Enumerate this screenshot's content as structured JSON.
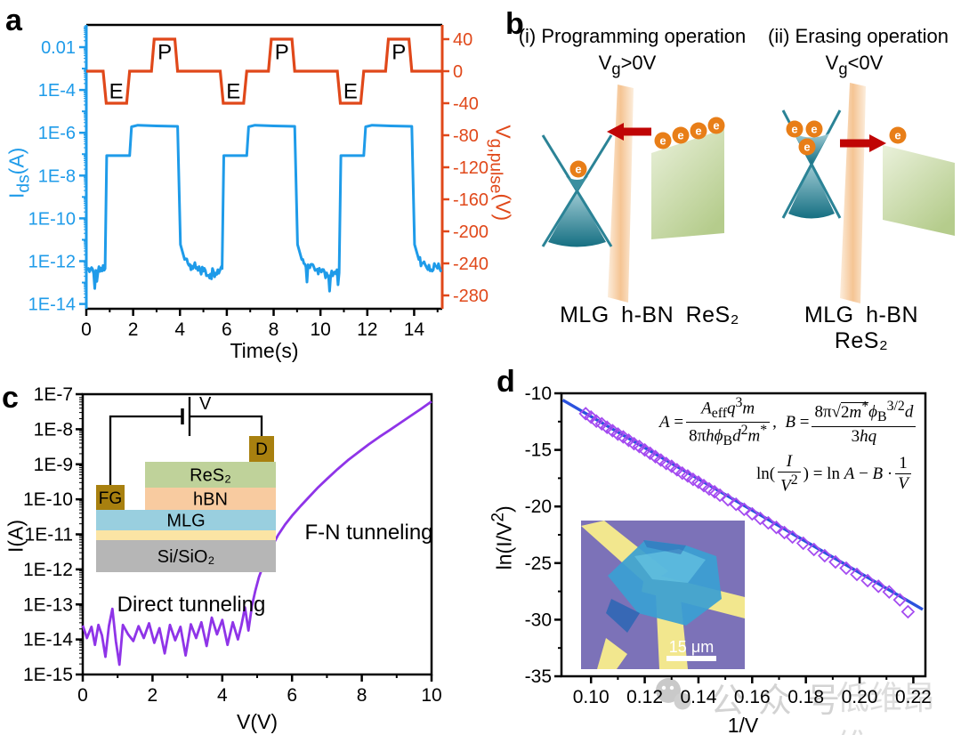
{
  "panel_labels": {
    "a": "a",
    "b": "b",
    "c": "c",
    "d": "d"
  },
  "watermark": {
    "icon": "wechat-icon",
    "text1": "公众号",
    "text2": "低维昂维"
  },
  "chart_data": [
    {
      "id": "panel_a",
      "type": "line",
      "title": "",
      "xlabel": "Time(s)",
      "ylabel_left": "Ids(A)",
      "ylabel_right": "Vg,pulse(V)",
      "x_range": [
        0,
        15.2
      ],
      "x_ticks": [
        0,
        2,
        4,
        6,
        8,
        10,
        12,
        14
      ],
      "x_minor": [
        1,
        3,
        5,
        7,
        9,
        11,
        13,
        15
      ],
      "y_left_scale": "log",
      "y_left_tick_labels": [
        "0.01",
        "1E-4",
        "1E-6",
        "1E-8",
        "1E-10",
        "1E-12",
        "1E-14"
      ],
      "y_left_tick_exps": [
        -2,
        -4,
        -6,
        -8,
        -10,
        -12,
        -14
      ],
      "y_right_ticks": [
        40,
        0,
        -40,
        -80,
        -120,
        -160,
        -200,
        -240,
        -280
      ],
      "series": {
        "vg_pulse": {
          "color": "#E0481A",
          "points": [
            [
              0,
              0
            ],
            [
              0.72,
              0
            ],
            [
              0.85,
              -40
            ],
            [
              1.72,
              -40
            ],
            [
              1.85,
              0
            ],
            [
              2.78,
              0
            ],
            [
              2.9,
              40
            ],
            [
              3.78,
              40
            ],
            [
              3.9,
              0
            ],
            [
              5.72,
              0
            ],
            [
              5.85,
              -40
            ],
            [
              6.72,
              -40
            ],
            [
              6.85,
              0
            ],
            [
              7.78,
              0
            ],
            [
              7.9,
              40
            ],
            [
              8.78,
              40
            ],
            [
              8.9,
              0
            ],
            [
              10.72,
              0
            ],
            [
              10.85,
              -40
            ],
            [
              11.72,
              -40
            ],
            [
              11.85,
              0
            ],
            [
              12.78,
              0
            ],
            [
              12.9,
              40
            ],
            [
              13.78,
              40
            ],
            [
              13.9,
              0
            ],
            [
              15.15,
              0
            ]
          ]
        },
        "ids": {
          "color": "#1E9BE9",
          "noise_amp_decades": 0.3,
          "anchors": [
            [
              0,
              4e-13
            ],
            [
              0.8,
              4.5e-13
            ],
            [
              0.87,
              8.5e-08
            ],
            [
              1.85,
              8.5e-08
            ],
            [
              1.93,
              1.9e-06
            ],
            [
              2.2,
              2.25e-06
            ],
            [
              3.0,
              2.1e-06
            ],
            [
              3.9,
              2e-06
            ],
            [
              4.02,
              6e-12
            ],
            [
              4.2,
              1.2e-12
            ],
            [
              4.5,
              6e-13
            ],
            [
              5.3,
              2.5e-13
            ],
            [
              5.8,
              4.5e-13
            ],
            [
              5.87,
              8.5e-08
            ],
            [
              6.85,
              8.5e-08
            ],
            [
              6.93,
              1.9e-06
            ],
            [
              7.2,
              2.25e-06
            ],
            [
              8.0,
              2.1e-06
            ],
            [
              8.9,
              2e-06
            ],
            [
              9.02,
              6e-12
            ],
            [
              9.2,
              1.2e-12
            ],
            [
              9.5,
              6e-13
            ],
            [
              10.3,
              2e-13
            ],
            [
              10.8,
              4.5e-13
            ],
            [
              10.87,
              8.5e-08
            ],
            [
              11.85,
              8.5e-08
            ],
            [
              11.93,
              1.9e-06
            ],
            [
              12.2,
              2.25e-06
            ],
            [
              13.0,
              2.1e-06
            ],
            [
              13.9,
              2e-06
            ],
            [
              14.02,
              6e-12
            ],
            [
              14.2,
              1.2e-12
            ],
            [
              14.5,
              6e-13
            ],
            [
              15.15,
              4e-13
            ]
          ]
        }
      },
      "pulse_annotations": [
        {
          "text": "P",
          "t": 3.35,
          "v": 24
        },
        {
          "text": "P",
          "t": 8.35,
          "v": 24
        },
        {
          "text": "P",
          "t": 13.35,
          "v": 24
        },
        {
          "text": "E",
          "t": 1.28,
          "v": -25
        },
        {
          "text": "E",
          "t": 6.28,
          "v": -25
        },
        {
          "text": "E",
          "t": 11.28,
          "v": -25
        }
      ]
    },
    {
      "id": "panel_c",
      "type": "line",
      "title": "",
      "xlabel": "V(V)",
      "ylabel": "I(A)",
      "x_range": [
        0,
        10
      ],
      "x_ticks": [
        0,
        2,
        4,
        6,
        8,
        10
      ],
      "x_minor": [
        1,
        3,
        5,
        7,
        9
      ],
      "y_scale": "log",
      "y_exp_range": [
        -15,
        -7
      ],
      "y_tick_labels": [
        "1E-7",
        "1E-8",
        "1E-9",
        "1E-10",
        "1E-11",
        "1E-12",
        "1E-13",
        "1E-14",
        "1E-15"
      ],
      "series": {
        "iv": {
          "color": "#8F34E8",
          "points": [
            [
              0,
              2.5e-14
            ],
            [
              0.12,
              1.1e-14
            ],
            [
              0.25,
              2.3e-14
            ],
            [
              0.35,
              7e-15
            ],
            [
              0.45,
              2.6e-14
            ],
            [
              0.55,
              1.3e-14
            ],
            [
              0.65,
              3.2e-15
            ],
            [
              0.75,
              2.4e-14
            ],
            [
              0.85,
              7.5e-14
            ],
            [
              0.95,
              9e-15
            ],
            [
              1.05,
              1.9e-15
            ],
            [
              1.15,
              2.6e-14
            ],
            [
              1.3,
              1.4e-14
            ],
            [
              1.45,
              9e-15
            ],
            [
              1.6,
              2.4e-14
            ],
            [
              1.75,
              1.1e-14
            ],
            [
              1.9,
              2.9e-14
            ],
            [
              2.05,
              8e-15
            ],
            [
              2.2,
              2.1e-14
            ],
            [
              2.35,
              4e-15
            ],
            [
              2.5,
              2.6e-14
            ],
            [
              2.65,
              9.5e-15
            ],
            [
              2.8,
              2.3e-14
            ],
            [
              2.95,
              3.5e-15
            ],
            [
              3.1,
              2.7e-14
            ],
            [
              3.25,
              1.1e-14
            ],
            [
              3.4,
              3.1e-14
            ],
            [
              3.55,
              6.5e-15
            ],
            [
              3.7,
              4.2e-14
            ],
            [
              3.85,
              1.4e-14
            ],
            [
              4.0,
              3.6e-14
            ],
            [
              4.15,
              7e-15
            ],
            [
              4.3,
              3.1e-14
            ],
            [
              4.45,
              1e-14
            ],
            [
              4.55,
              2.6e-14
            ],
            [
              4.65,
              8.2e-14
            ],
            [
              4.75,
              1.8e-14
            ],
            [
              4.85,
              9e-14
            ],
            [
              4.95,
              2.5e-13
            ],
            [
              5.05,
              6e-13
            ],
            [
              5.2,
              1.5e-12
            ],
            [
              5.4,
              4e-12
            ],
            [
              5.6,
              9.5e-12
            ],
            [
              5.8,
              1.9e-11
            ],
            [
              6.0,
              3.4e-11
            ],
            [
              6.25,
              6.5e-11
            ],
            [
              6.5,
              1.2e-10
            ],
            [
              6.75,
              2.2e-10
            ],
            [
              7.0,
              3.8e-10
            ],
            [
              7.3,
              7.2e-10
            ],
            [
              7.6,
              1.3e-09
            ],
            [
              7.9,
              2.2e-09
            ],
            [
              8.2,
              3.7e-09
            ],
            [
              8.5,
              6e-09
            ],
            [
              8.8,
              9.5e-09
            ],
            [
              9.1,
              1.5e-08
            ],
            [
              9.4,
              2.4e-08
            ],
            [
              9.7,
              3.8e-08
            ],
            [
              10.0,
              6.2e-08
            ]
          ]
        }
      },
      "annotations": [
        {
          "text": "Direct tunneling"
        },
        {
          "text": "F-N tunneling"
        }
      ]
    },
    {
      "id": "panel_d",
      "type": "scatter",
      "title": "",
      "xlabel": "1/V",
      "ylabel": "ln(I/V2)",
      "x_range": [
        0.089,
        0.2245
      ],
      "x_tick_labels": [
        "0.10",
        "0.12",
        "0.14",
        "0.16",
        "0.18",
        "0.20",
        "0.22"
      ],
      "x_ticks": [
        0.1,
        0.12,
        0.14,
        0.16,
        0.18,
        0.2,
        0.22
      ],
      "x_minor": [
        0.11,
        0.13,
        0.15,
        0.17,
        0.19,
        0.21
      ],
      "y_range": [
        -35,
        -10
      ],
      "y_ticks": [
        -10,
        -15,
        -20,
        -25,
        -30,
        -35
      ],
      "y_minor": [
        -12.5,
        -17.5,
        -22.5,
        -27.5,
        -32.5
      ],
      "scatter": {
        "color": "#A44BF0",
        "marker": "open-diamond",
        "points": [
          [
            0.098,
            -11.8
          ],
          [
            0.1,
            -12.1
          ],
          [
            0.102,
            -12.45
          ],
          [
            0.104,
            -12.7
          ],
          [
            0.106,
            -13.0
          ],
          [
            0.108,
            -13.3
          ],
          [
            0.11,
            -13.6
          ],
          [
            0.112,
            -13.85
          ],
          [
            0.114,
            -14.15
          ],
          [
            0.116,
            -14.45
          ],
          [
            0.118,
            -14.7
          ],
          [
            0.12,
            -15.0
          ],
          [
            0.122,
            -15.3
          ],
          [
            0.124,
            -15.6
          ],
          [
            0.126,
            -15.9
          ],
          [
            0.128,
            -16.2
          ],
          [
            0.13,
            -16.45
          ],
          [
            0.132,
            -16.75
          ],
          [
            0.134,
            -17.05
          ],
          [
            0.136,
            -17.3
          ],
          [
            0.138,
            -17.6
          ],
          [
            0.14,
            -17.85
          ],
          [
            0.142,
            -18.15
          ],
          [
            0.144,
            -18.45
          ],
          [
            0.146,
            -18.7
          ],
          [
            0.148,
            -19.0
          ],
          [
            0.151,
            -19.4
          ],
          [
            0.154,
            -19.8
          ],
          [
            0.157,
            -20.25
          ],
          [
            0.16,
            -20.65
          ],
          [
            0.163,
            -21.05
          ],
          [
            0.166,
            -21.45
          ],
          [
            0.169,
            -21.85
          ],
          [
            0.172,
            -22.3
          ],
          [
            0.175,
            -22.7
          ],
          [
            0.179,
            -23.25
          ],
          [
            0.183,
            -23.8
          ],
          [
            0.187,
            -24.35
          ],
          [
            0.191,
            -24.9
          ],
          [
            0.195,
            -25.45
          ],
          [
            0.199,
            -26.0
          ],
          [
            0.203,
            -26.55
          ],
          [
            0.207,
            -27.05
          ],
          [
            0.211,
            -27.55
          ],
          [
            0.215,
            -28.25
          ],
          [
            0.218,
            -29.3
          ]
        ]
      },
      "fit_line": {
        "color": "#2B52DE",
        "from": [
          0.0895,
          -10.6
        ],
        "to": [
          0.2235,
          -29.1
        ]
      }
    }
  ],
  "panel_a": {
    "ylabel_left_html": "I<sub>ds</sub>(A)",
    "ylabel_right_html": "V<sub>g,pulse</sub>(V)",
    "xlabel": "Time(s)"
  },
  "panel_b": {
    "i_title": "(i) Programming operation",
    "i_condition_html": "V<sub>g</sub>&gt;0V",
    "ii_title": "(ii) Erasing operation",
    "ii_condition_html": "V<sub>g</sub>&lt;0V",
    "i_stack_label": "MLG h-BN ReS₂",
    "ii_stack_label": "MLG h-BN ReS₂",
    "electron_symbol": "e",
    "electrons_i": [
      [
        110,
        190
      ],
      [
        205,
        158
      ],
      [
        225,
        152
      ],
      [
        245,
        147
      ],
      [
        265,
        141
      ]
    ],
    "electrons_ii": [
      [
        353,
        145
      ],
      [
        375,
        145
      ],
      [
        367,
        165
      ],
      [
        469,
        152
      ]
    ],
    "colors": {
      "cone_stroke": "#2B8396",
      "cone_fill_top": "#8FC5CF",
      "cone_fill_bottom": "#156F82",
      "barrier_edge": "#FCEDDC",
      "barrier_center": "#F5C493",
      "band_light": "#EAF1DB",
      "band_dark": "#B5CC8C",
      "electron": "#E87E18",
      "arrow": "#C00505"
    }
  },
  "panel_c": {
    "ylabel": "I(A)",
    "xlabel": "V(V)",
    "annotations": [
      {
        "text": "Direct tunneling"
      },
      {
        "text": "F-N tunneling"
      }
    ],
    "inset": {
      "source_label": "V",
      "contact_left": "FG",
      "contact_right": "D",
      "layers": [
        {
          "label": "ReS₂",
          "color": "#BFD29A"
        },
        {
          "label": "hBN",
          "color": "#F8CBA0"
        },
        {
          "label": "MLG",
          "color": "#99CFDF"
        },
        {
          "label": "",
          "color": "#FBE4A4"
        },
        {
          "label": "Si/SiO₂",
          "color": "#B6B6B6"
        }
      ],
      "contact_color": "#A8800F"
    }
  },
  "panel_d": {
    "ylabel_html": "ln(I/V<sup>2</sup>)",
    "xlabel": "1/V",
    "equations": {
      "a_lhs": "<i>A</i> =",
      "a_num": "<i>A</i><sub>eff</sub><i>q</i><sup>3</sup><i>m</i>",
      "a_den": "8π<i>h</i><i>ϕ</i><sub>B</sub><i>d</i><sup>2</sup><i>m</i><sup>*</sup>",
      "comma": ",",
      "b_lhs": "<i>B</i> =",
      "b_num": "8π√<span class=\"ovl\">2<i>m</i><sup>*</sup></span><i>ϕ</i><sub>B</sub><sup>3/2</sup><i>d</i>",
      "b_den": "3<i>hq</i>",
      "ln_pre": "ln(",
      "ln_f1n": "<i>I</i>",
      "ln_f1d": "<i>V</i><sup>2</sup>",
      "ln_mid": ") = ln <i>A</i> − <i>B</i> ·",
      "ln_f2n": "1",
      "ln_f2d": "<i>V</i>"
    },
    "inset": {
      "scale_label": "15 μm"
    }
  }
}
